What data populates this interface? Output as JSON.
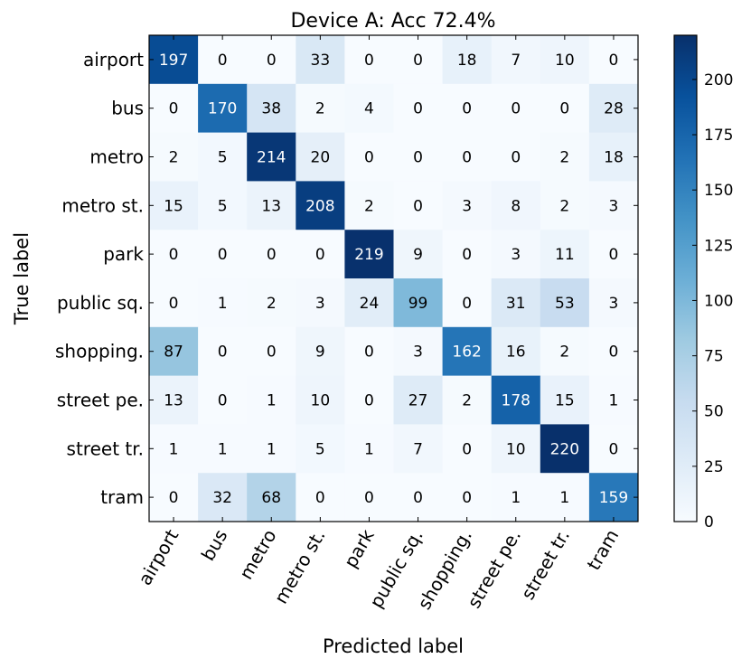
{
  "chart_data": {
    "type": "heatmap",
    "title": "Device A: Acc 72.4%",
    "xlabel": "Predicted label",
    "ylabel": "True label",
    "row_labels": [
      "airport",
      "bus",
      "metro",
      "metro st.",
      "park",
      "public sq.",
      "shopping.",
      "street pe.",
      "street tr.",
      "tram"
    ],
    "col_labels": [
      "airport",
      "bus",
      "metro",
      "metro st.",
      "park",
      "public sq.",
      "shopping.",
      "street pe.",
      "street tr.",
      "tram"
    ],
    "matrix": [
      [
        197,
        0,
        0,
        33,
        0,
        0,
        18,
        7,
        10,
        0
      ],
      [
        0,
        170,
        38,
        2,
        4,
        0,
        0,
        0,
        0,
        28
      ],
      [
        2,
        5,
        214,
        20,
        0,
        0,
        0,
        0,
        2,
        18
      ],
      [
        15,
        5,
        13,
        208,
        2,
        0,
        3,
        8,
        2,
        3
      ],
      [
        0,
        0,
        0,
        0,
        219,
        9,
        0,
        3,
        11,
        0
      ],
      [
        0,
        1,
        2,
        3,
        24,
        99,
        0,
        31,
        53,
        3
      ],
      [
        87,
        0,
        0,
        9,
        0,
        3,
        162,
        16,
        2,
        0
      ],
      [
        13,
        0,
        1,
        10,
        0,
        27,
        2,
        178,
        15,
        1
      ],
      [
        1,
        1,
        1,
        5,
        1,
        7,
        0,
        10,
        220,
        0
      ],
      [
        0,
        32,
        68,
        0,
        0,
        0,
        0,
        1,
        1,
        159
      ]
    ],
    "colormap": "Blues",
    "color_range": [
      0,
      220
    ],
    "colorbar_ticks": [
      0,
      25,
      50,
      75,
      100,
      125,
      150,
      175,
      200
    ]
  }
}
